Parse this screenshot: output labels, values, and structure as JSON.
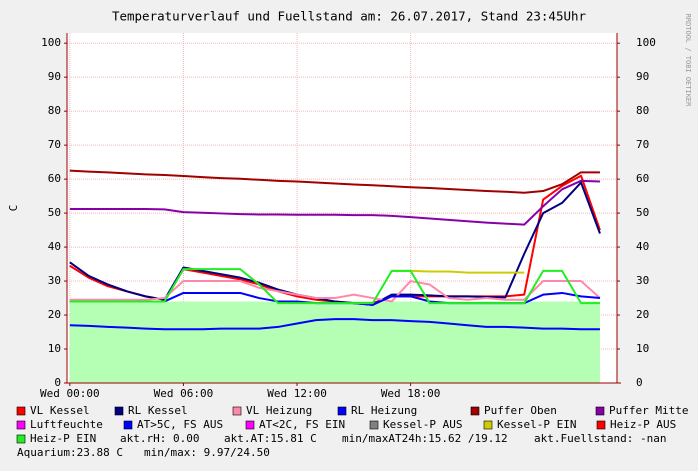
{
  "chart_data": {
    "type": "line",
    "title": "Temperaturverlauf und Fuellstand am: 26.07.2017, Stand 23:45Uhr",
    "y_label": "C",
    "side_note": "RRDTOOL / TOBI OETIKER",
    "x": [
      0,
      1,
      2,
      3,
      4,
      5,
      6,
      7,
      8,
      9,
      10,
      11,
      12,
      13,
      14,
      15,
      16,
      17,
      18,
      19,
      20,
      21,
      22,
      23,
      24,
      25,
      26,
      27,
      28
    ],
    "xlim": [
      -0.15,
      28.9
    ],
    "xticks": [
      {
        "value": 0,
        "label": "Wed 00:00"
      },
      {
        "value": 6,
        "label": "Wed 06:00"
      },
      {
        "value": 12,
        "label": "Wed 12:00"
      },
      {
        "value": 18,
        "label": "Wed 18:00"
      }
    ],
    "ylim": [
      0,
      103
    ],
    "yticks": [
      0,
      10,
      20,
      30,
      40,
      50,
      60,
      70,
      80,
      90,
      100
    ],
    "grid": true,
    "area": {
      "color": "#b4ffb4",
      "values": [
        24,
        24,
        24,
        24,
        24,
        24,
        24,
        24,
        24,
        24,
        24,
        24,
        24,
        24,
        24,
        24,
        24,
        24,
        24,
        24,
        24,
        24,
        24,
        24,
        24,
        24,
        24,
        24,
        24
      ]
    },
    "series": [
      {
        "name": "VL Kessel",
        "color": "#ff0000",
        "values": [
          34.5,
          31,
          28.5,
          27,
          25.5,
          24.5,
          33.5,
          32.5,
          31.5,
          30.5,
          29,
          27,
          25.5,
          24.5,
          24,
          23.5,
          23.5,
          25.5,
          25.5,
          25.5,
          25.5,
          25.5,
          25.5,
          25.5,
          26,
          54,
          58,
          61,
          45
        ]
      },
      {
        "name": "RL Kessel",
        "color": "#000080",
        "values": [
          35.5,
          31.5,
          29,
          27,
          25.5,
          24.5,
          34,
          33,
          32,
          31,
          29.5,
          27.5,
          26,
          25,
          24,
          23.5,
          23,
          26,
          26,
          25.8,
          25.5,
          25.5,
          25.3,
          25.2,
          38,
          50,
          53,
          59,
          44
        ]
      },
      {
        "name": "VL Heizung",
        "color": "#ff88aa",
        "values": [
          24.5,
          24.5,
          24.5,
          24.5,
          24.5,
          25,
          30,
          30,
          30,
          30,
          28,
          27,
          26,
          25,
          25,
          26,
          25,
          24,
          30,
          29,
          25,
          24.5,
          25,
          24.5,
          24.5,
          30,
          30,
          30,
          25
        ]
      },
      {
        "name": "RL Heizung",
        "color": "#0000ff",
        "values": [
          24,
          24,
          24,
          24,
          24,
          24,
          26.5,
          26.5,
          26.5,
          26.5,
          25,
          24,
          24,
          23.5,
          23.5,
          23.5,
          23,
          25.5,
          25.5,
          24,
          23.5,
          23.5,
          23.5,
          23.5,
          23.5,
          26,
          26.5,
          25.5,
          25
        ]
      },
      {
        "name": "Puffer Oben",
        "color": "#a00000",
        "values": [
          62.5,
          62.2,
          62,
          61.7,
          61.4,
          61.2,
          60.9,
          60.6,
          60.3,
          60.1,
          59.8,
          59.5,
          59.3,
          59,
          58.7,
          58.4,
          58.2,
          57.9,
          57.6,
          57.4,
          57.1,
          56.8,
          56.5,
          56.3,
          56,
          56.5,
          58.5,
          62,
          62
        ]
      },
      {
        "name": "Puffer Mitte",
        "color": "#8800aa",
        "values": [
          51.2,
          51.2,
          51.2,
          51.2,
          51.2,
          51.1,
          50.3,
          50.1,
          49.9,
          49.7,
          49.6,
          49.6,
          49.5,
          49.5,
          49.5,
          49.4,
          49.4,
          49.2,
          48.8,
          48.4,
          48,
          47.6,
          47.2,
          46.9,
          46.6,
          52,
          57,
          59.5,
          59.3
        ]
      },
      {
        "name": "AT>5C, FS AUS",
        "color": "#0000ff",
        "values": [
          17,
          16.8,
          16.5,
          16.3,
          16,
          15.8,
          15.8,
          15.8,
          16,
          16,
          16,
          16.5,
          17.5,
          18.5,
          18.8,
          18.8,
          18.5,
          18.5,
          18.2,
          18,
          17.5,
          17,
          16.5,
          16.5,
          16.3,
          16,
          16,
          15.8,
          15.8
        ]
      },
      {
        "name": "Kessel-P EIN",
        "color": "#cccc00",
        "values": [
          null,
          null,
          null,
          null,
          null,
          null,
          null,
          null,
          null,
          null,
          null,
          null,
          null,
          null,
          null,
          null,
          null,
          33,
          33,
          32.8,
          32.8,
          32.5,
          32.5,
          32.5,
          32.5,
          null,
          null,
          null,
          null
        ]
      },
      {
        "name": "Heiz-P EIN",
        "color": "#22ee22",
        "values": [
          24,
          24,
          24,
          24,
          24,
          24,
          33.5,
          33.5,
          33.5,
          33.5,
          29,
          23.5,
          23.5,
          23.5,
          23.5,
          23.5,
          23.5,
          33,
          33,
          23.5,
          23.5,
          23.5,
          23.5,
          23.5,
          23.5,
          33,
          33,
          23.5,
          23.5
        ]
      }
    ],
    "legend_extra": [
      {
        "name": "Luftfeuchte",
        "color": "#ff00ff"
      },
      {
        "name": "AT<2C, FS EIN",
        "color": "#ff00ff"
      },
      {
        "name": "Kessel-P AUS",
        "color": "#808080"
      },
      {
        "name": "Heiz-P AUS",
        "color": "#ff0000"
      }
    ],
    "notes": [
      "akt.rH: 0.00",
      "akt.AT:15.81 C",
      "min/maxAT24h:15.62 /19.12",
      "akt.Fuellstand: -nan",
      "Aquarium:23.88 C",
      "min/max: 9.97/24.50"
    ]
  }
}
